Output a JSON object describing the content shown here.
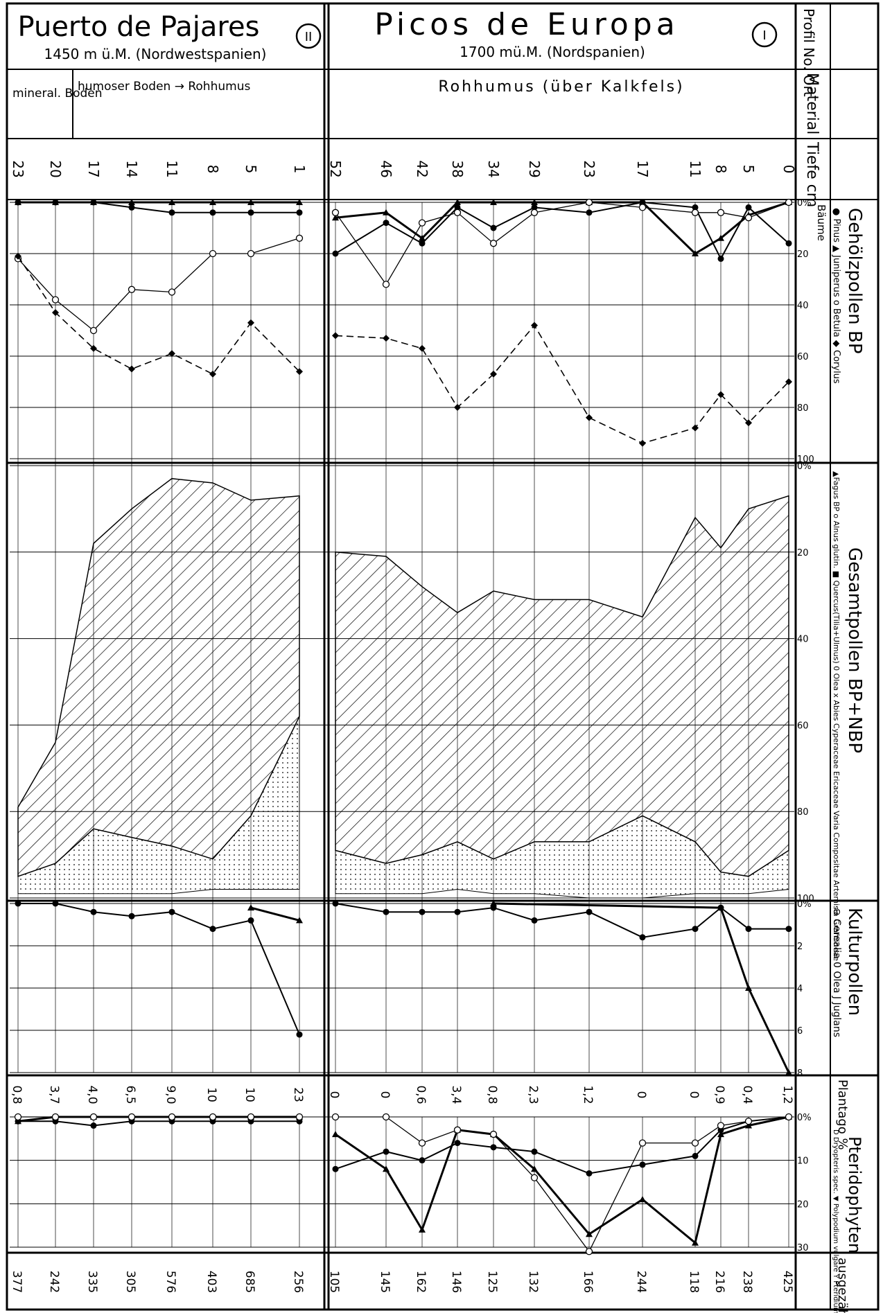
{
  "profiles": {
    "right": {
      "title": "Picos de Europa",
      "altitude": "1700 mü.M. (Nordspanien)",
      "number": "I",
      "material": "Rohhumus (über Kalkfels)",
      "depths": [
        "52",
        "46",
        "42",
        "38",
        "34",
        "29",
        "23",
        "17",
        "11",
        "8",
        "5",
        "0"
      ]
    },
    "left": {
      "title": "Puerto de Pajares",
      "altitude": "1450 m ü.M. (Nordwestspanien)",
      "number": "II",
      "material_a": "mineral. Boden",
      "material_b": "humoser Boden → Rohhumus",
      "depths": [
        "23",
        "20",
        "17",
        "14",
        "11",
        "8",
        "5",
        "1"
      ]
    }
  },
  "side_header": {
    "profil": "Profil No. Ort",
    "material": "Material",
    "tiefe": "Tiefe cm",
    "gehoelz": "Gehölzpollen BP",
    "gehoelz_sub": "Bäume",
    "gehoelz_legend": "● Pinus   ▲ Juniperus   o Betula   ◆ Corylus",
    "gesamt": "Gesamtpollen BP+NBP",
    "gesamt_legend": "▲Fagus  BP  o Alnus glutin.  ■ Quercus(Tilia+Ulmus)  0 Olea  x Abies  Cyperaceae  Ericaceae  Varia  Compositae  Artemisia  Gramineae",
    "kultur": "Kulturpollen",
    "kultur_legend": "⊖ Cerealia  0 Olea  J Juglans",
    "plantago": "Plantago %",
    "pterido": "Pteridophyten",
    "pterido_legend": "D Dryopteris spec.  ▼ Polypodium vulgare  Y Pteridium aquilinum",
    "pollen": "ausgezählte Pollen"
  },
  "axis_ticks": {
    "gehoelz": [
      "0%",
      "20",
      "40",
      "60",
      "80",
      "100"
    ],
    "gesamt": [
      "0%",
      "20",
      "40",
      "60",
      "80",
      "100"
    ],
    "kultur": [
      "0%",
      "2",
      "4",
      "6",
      "8"
    ],
    "pterido": [
      "0%",
      "10",
      "20",
      "30"
    ]
  },
  "plantago": {
    "right": [
      "0",
      "0",
      "0,6",
      "3,4",
      "0,8",
      "2,3",
      "1,2",
      "0",
      "0",
      "0,9",
      "0,4",
      "1,2"
    ],
    "left": [
      "0,8",
      "3,7",
      "4,0",
      "6,5",
      "9,0",
      "10",
      "10",
      "23"
    ]
  },
  "pollen_counts": {
    "right": [
      "105",
      "145",
      "162",
      "146",
      "125",
      "132",
      "166",
      "244",
      "118",
      "216",
      "238",
      "425"
    ],
    "left": [
      "377",
      "242",
      "335",
      "305",
      "576",
      "403",
      "685",
      "256"
    ]
  },
  "chart_data": [
    {
      "type": "line",
      "title": "Gehölzpollen BP",
      "xlabel": "Tiefe cm",
      "ylim": [
        0,
        100
      ],
      "series": [
        {
          "name": "Pinus",
          "profile_right": [
            20,
            8,
            16,
            2,
            10,
            2,
            4,
            0,
            2,
            22,
            2,
            16
          ],
          "profile_left": [
            0,
            0,
            0,
            2,
            4,
            4,
            4,
            4
          ]
        },
        {
          "name": "Juniperus",
          "profile_right": [
            6,
            4,
            14,
            0,
            0,
            0,
            0,
            0,
            20,
            14,
            5,
            0
          ],
          "profile_left": [
            0,
            0,
            0,
            0,
            0,
            0,
            0,
            0
          ]
        },
        {
          "name": "Betula",
          "profile_right": [
            4,
            32,
            8,
            4,
            16,
            4,
            0,
            2,
            4,
            4,
            6,
            0
          ],
          "profile_left": [
            22,
            38,
            50,
            34,
            35,
            20,
            20,
            14
          ]
        },
        {
          "name": "Corylus",
          "profile_right": [
            52,
            53,
            57,
            80,
            67,
            48,
            84,
            94,
            88,
            75,
            86,
            70
          ],
          "profile_left": [
            21,
            43,
            57,
            65,
            59,
            67,
            47,
            66
          ]
        }
      ]
    },
    {
      "type": "area",
      "title": "Gesamtpollen BP+NBP",
      "ylim": [
        0,
        100
      ],
      "series": [
        {
          "name": "BP",
          "profile_right": [
            20,
            21,
            28,
            34,
            29,
            31,
            31,
            35,
            12,
            19,
            10,
            7
          ],
          "profile_left": [
            79,
            64,
            18,
            10,
            3,
            4,
            8,
            7
          ]
        },
        {
          "name": "Varia",
          "profile_right": [
            89,
            92,
            90,
            87,
            91,
            87,
            87,
            81,
            87,
            94,
            95,
            89
          ],
          "profile_left": [
            95,
            92,
            84,
            86,
            88,
            91,
            81,
            58
          ]
        },
        {
          "name": "Gramineae",
          "profile_right": [
            99,
            99,
            99,
            98,
            99,
            99,
            100,
            100,
            99,
            99,
            99,
            98
          ],
          "profile_left": [
            99,
            99,
            99,
            99,
            99,
            98,
            98,
            98
          ]
        }
      ]
    },
    {
      "type": "line",
      "title": "Kulturpollen",
      "ylim": [
        0,
        8
      ],
      "series": [
        {
          "name": "Cerealia",
          "profile_right": [
            0,
            0.4,
            0.4,
            0.4,
            0.2,
            0.8,
            0.4,
            1.6,
            1.2,
            0.2,
            1.2,
            1.2
          ],
          "profile_left": [
            0,
            0,
            0.4,
            0.6,
            0.4,
            1.2,
            0.8,
            6.2
          ]
        },
        {
          "name": "Olea",
          "profile_right": [
            null,
            null,
            null,
            null,
            0,
            null,
            null,
            null,
            null,
            0.2,
            4.0,
            8.0
          ],
          "profile_left": [
            null,
            null,
            null,
            null,
            null,
            null,
            0.2,
            0.8
          ]
        }
      ]
    },
    {
      "type": "line",
      "title": "Pteridophyten",
      "ylim": [
        0,
        30
      ],
      "series": [
        {
          "name": "Dryopteris spec.",
          "profile_right": [
            12,
            8,
            10,
            6,
            7,
            8,
            13,
            11,
            9,
            3,
            1,
            0
          ],
          "profile_left": [
            1,
            1,
            2,
            1,
            1,
            1,
            1,
            1
          ]
        },
        {
          "name": "Polypodium vulgare",
          "profile_right": [
            4,
            12,
            26,
            3,
            4,
            12,
            27,
            19,
            29,
            4,
            2,
            0
          ],
          "profile_left": [
            1,
            0,
            0,
            0,
            0,
            0,
            0,
            0
          ]
        },
        {
          "name": "Pteridium aquilinum",
          "profile_right": [
            0,
            0,
            6,
            3,
            4,
            14,
            31,
            6,
            6,
            2,
            1,
            0
          ],
          "profile_left": [
            0,
            0,
            0,
            0,
            0,
            0,
            0,
            0
          ]
        }
      ]
    }
  ]
}
